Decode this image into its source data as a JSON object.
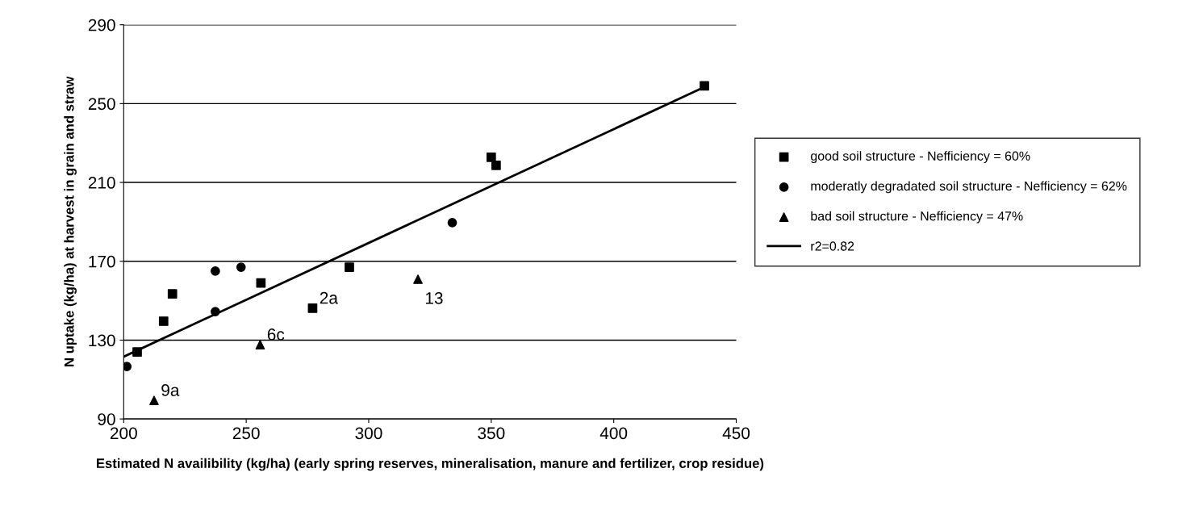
{
  "chart_data": {
    "type": "scatter",
    "xlabel": "Estimated N availibility (kg/ha) (early spring reserves, mineralisation, manure and fertilizer, crop residue)",
    "ylabel": "N uptake (kg/ha) at harvest in grain and straw",
    "xlim": [
      200,
      450
    ],
    "xticks": [
      200,
      250,
      300,
      350,
      400,
      450
    ],
    "ylim": [
      90,
      290
    ],
    "yticks": [
      90,
      130,
      170,
      210,
      250,
      290
    ],
    "grid": "y",
    "legend": "right",
    "series": [
      {
        "name": "good soil structure - Nefficiency = 60%",
        "color": "#000000",
        "marker": "square",
        "x": [
          205.5,
          216.3,
          219.9,
          256,
          277.1,
          292.1,
          350,
          352,
          437
        ],
        "values": [
          124,
          139.6,
          153.5,
          159,
          146.2,
          167,
          222.8,
          218.7,
          259
        ]
      },
      {
        "name": "moderatly degradated soil structure - Nefficiency = 62%",
        "color": "#000000",
        "marker": "circle",
        "x": [
          201.3,
          237.4,
          237.4,
          247.9,
          334.1
        ],
        "values": [
          116.6,
          165,
          144.5,
          167,
          189.6
        ]
      },
      {
        "name": "bad soil structure - Nefficiency = 47%",
        "color": "#000000",
        "marker": "triangle",
        "x": [
          212.4,
          255.7,
          320.1
        ],
        "values": [
          99.4,
          127.7,
          160.9
        ]
      },
      {
        "name": "r2=0.82",
        "type": "line",
        "color": "#000000",
        "marker": "none",
        "line_style": "solid",
        "x": [
          200,
          437
        ],
        "values": [
          121.6,
          258.4
        ]
      }
    ],
    "annotations": [
      {
        "text": "2a",
        "x": 277.1,
        "y": 146.2
      },
      {
        "text": "13",
        "x": 320.1,
        "y": 160.9
      },
      {
        "text": "6c",
        "x": 255.7,
        "y": 127.7
      },
      {
        "text": "9a",
        "x": 212.4,
        "y": 99.4
      }
    ]
  }
}
